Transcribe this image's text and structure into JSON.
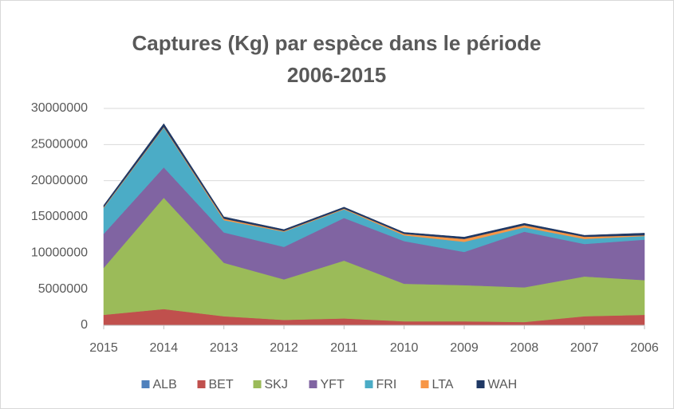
{
  "chart_data": {
    "type": "stacked_area",
    "title": "Captures (Kg) par espèce dans le période 2006-2015",
    "categories": [
      "2015",
      "2014",
      "2013",
      "2012",
      "2011",
      "2010",
      "2009",
      "2008",
      "2007",
      "2006"
    ],
    "series": [
      {
        "name": "ALB",
        "color": "#4f81bd",
        "values": [
          50000,
          50000,
          50000,
          50000,
          50000,
          50000,
          50000,
          50000,
          50000,
          50000
        ]
      },
      {
        "name": "BET",
        "color": "#c0504d",
        "values": [
          1400000,
          2200000,
          1200000,
          700000,
          900000,
          500000,
          500000,
          400000,
          1200000,
          1400000
        ]
      },
      {
        "name": "SKJ",
        "color": "#9bbb59",
        "values": [
          6500000,
          15400000,
          7400000,
          5600000,
          8000000,
          5200000,
          5000000,
          4800000,
          5500000,
          4800000
        ]
      },
      {
        "name": "YFT",
        "color": "#8064a2",
        "values": [
          4700000,
          4200000,
          4200000,
          4500000,
          5900000,
          5900000,
          4600000,
          7700000,
          4500000,
          5600000
        ]
      },
      {
        "name": "FRI",
        "color": "#4bacc6",
        "values": [
          3600000,
          5500000,
          1700000,
          2100000,
          1200000,
          800000,
          1400000,
          600000,
          700000,
          500000
        ]
      },
      {
        "name": "LTA",
        "color": "#f79646",
        "values": [
          100000,
          100000,
          200000,
          100000,
          100000,
          200000,
          400000,
          300000,
          300000,
          100000
        ]
      },
      {
        "name": "WAH",
        "color": "#1f3864",
        "values": [
          250000,
          450000,
          250000,
          200000,
          200000,
          200000,
          250000,
          250000,
          200000,
          300000
        ]
      }
    ],
    "ylim": [
      0,
      30000000
    ],
    "yticks": [
      0,
      5000000,
      10000000,
      15000000,
      20000000,
      25000000,
      30000000
    ],
    "grid": true,
    "legend": "bottom"
  }
}
